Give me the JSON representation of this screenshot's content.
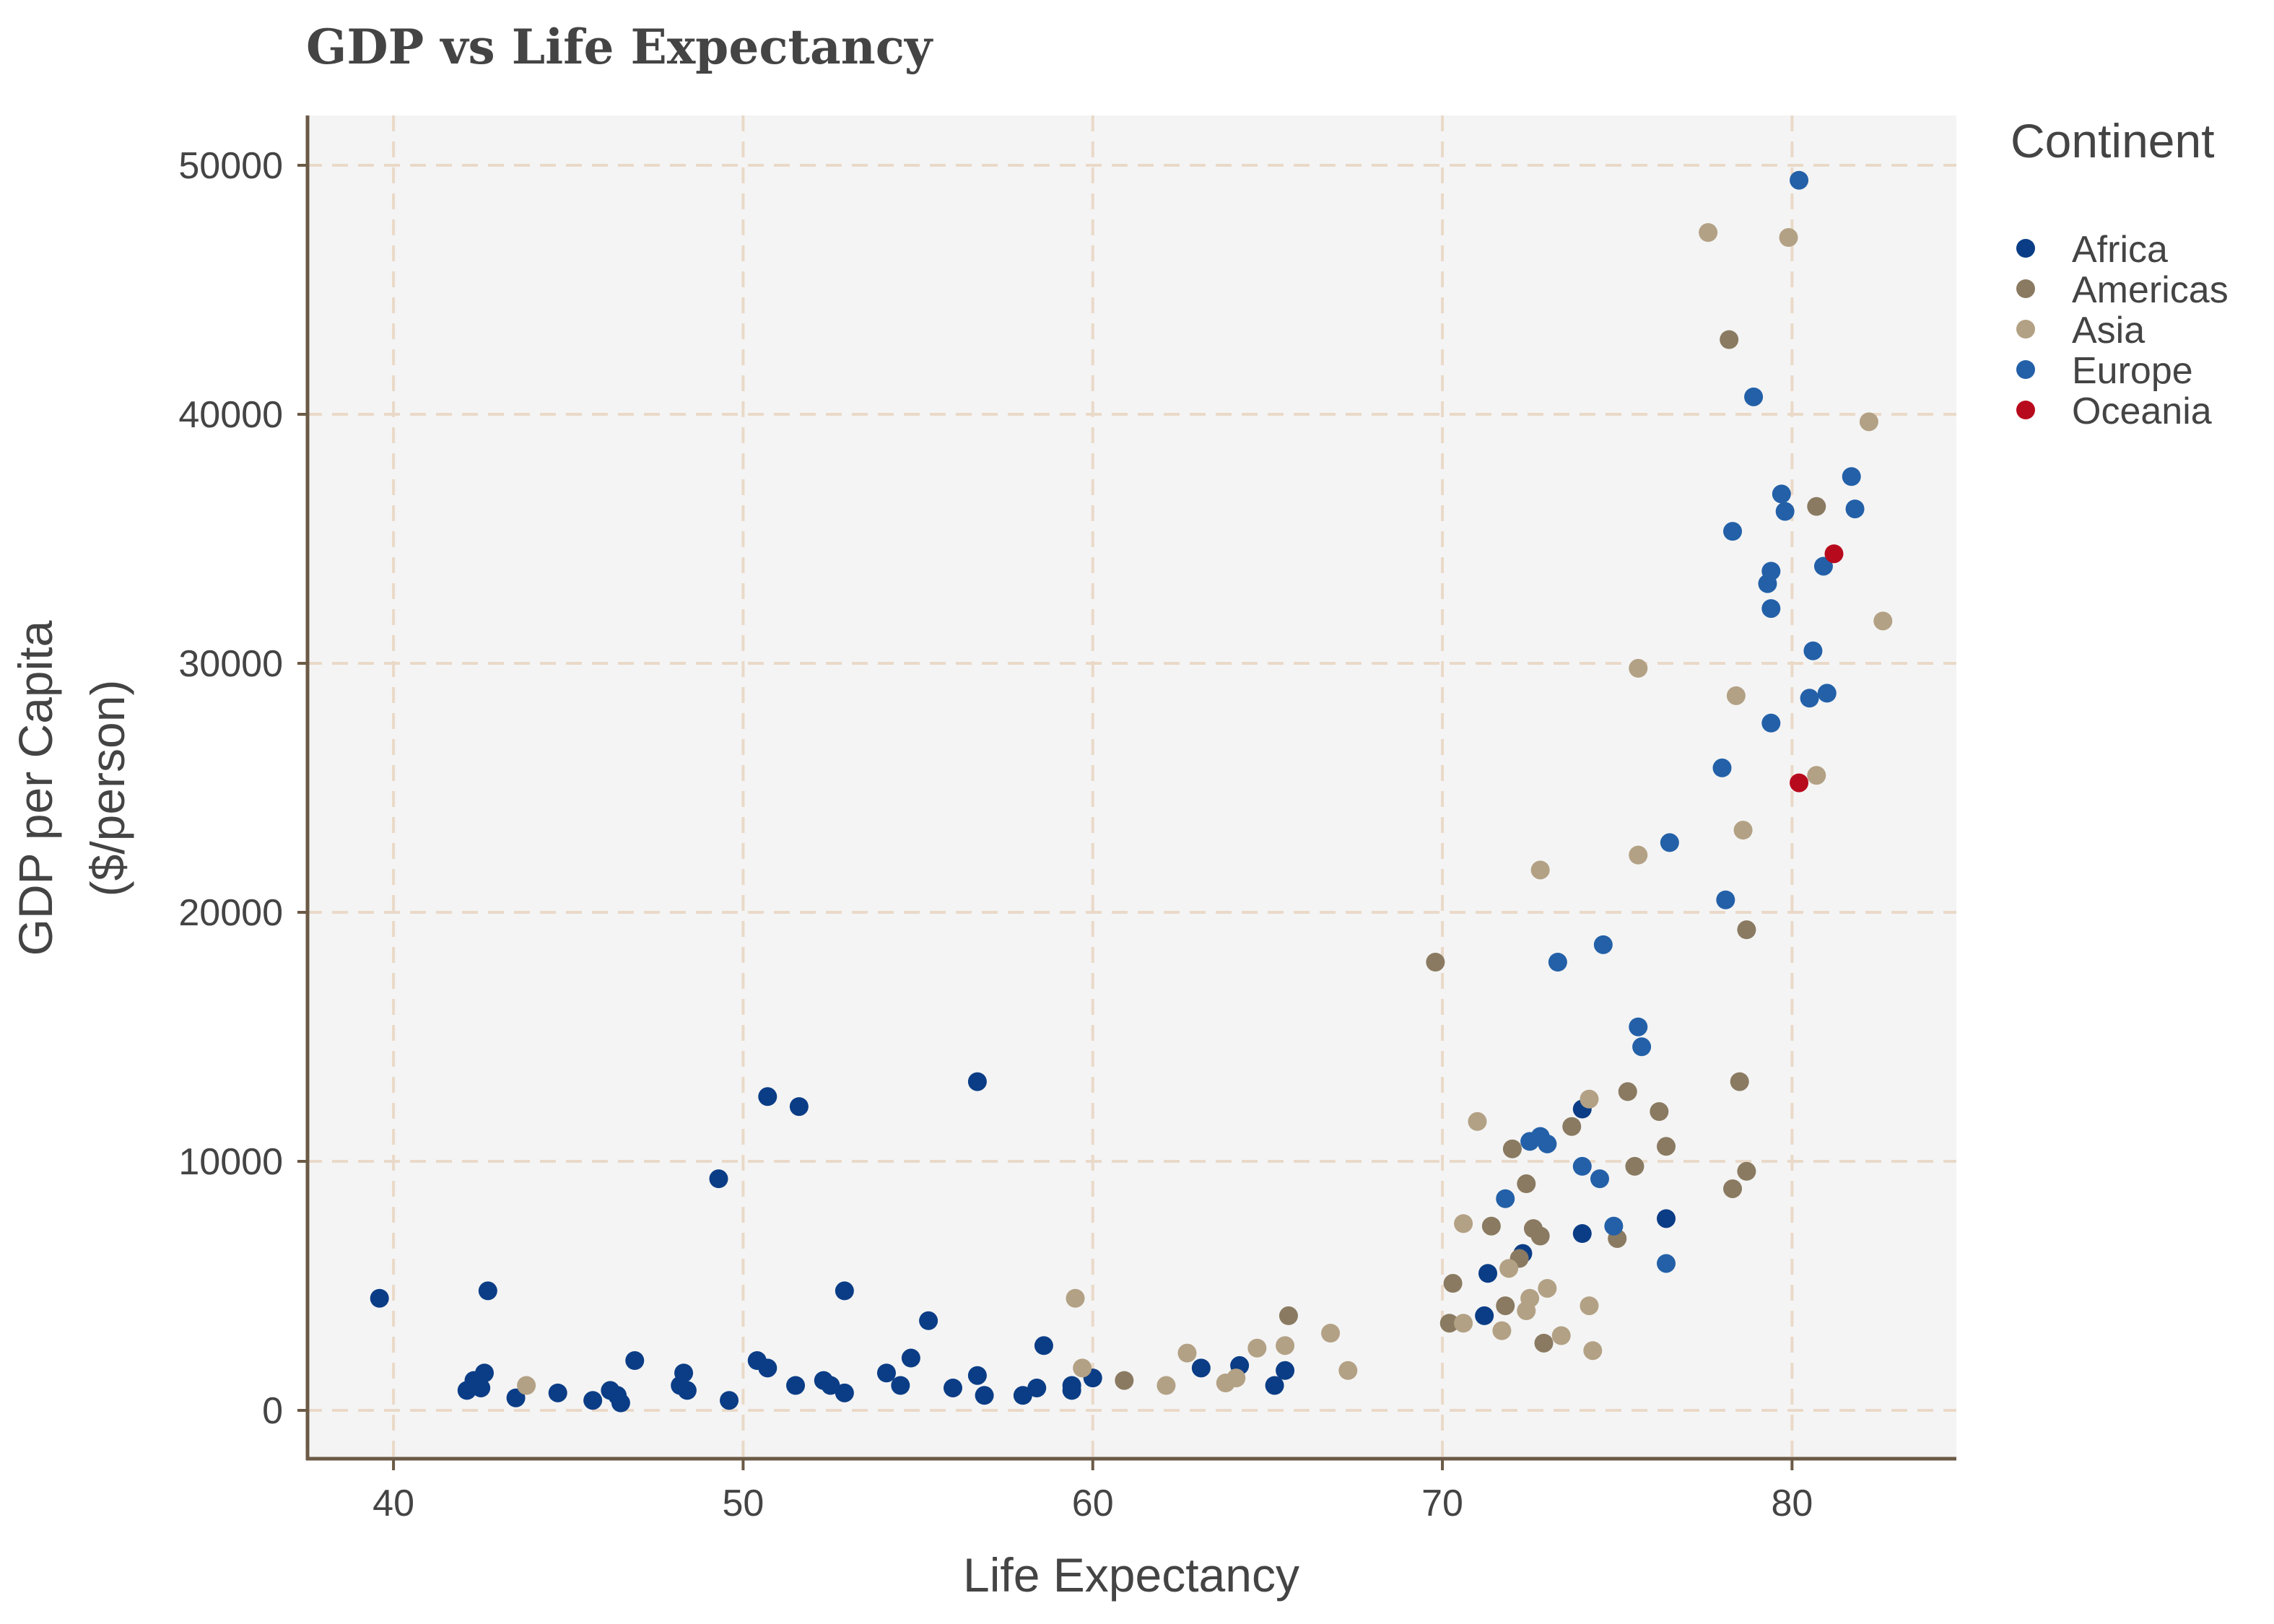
{
  "chart_data": {
    "type": "scatter",
    "title": "GDP vs Life Expectancy",
    "xlabel": "Life Expectancy",
    "ylabel": "GDP per Capita",
    "ylabel_line2": "($/person)",
    "xlim": [
      37.5,
      84.7
    ],
    "ylim": [
      -2000,
      52000
    ],
    "xticks": [
      40,
      50,
      60,
      70,
      80
    ],
    "yticks": [
      0,
      10000,
      20000,
      30000,
      40000,
      50000
    ],
    "grid": true,
    "legend_title": "Continent",
    "legend_position": "right",
    "series": [
      {
        "name": "Africa",
        "color": "#0b3d86",
        "points": [
          [
            39.6,
            4500
          ],
          [
            42.1,
            800
          ],
          [
            42.3,
            1200
          ],
          [
            42.5,
            900
          ],
          [
            42.6,
            1500
          ],
          [
            42.7,
            4800
          ],
          [
            43.5,
            500
          ],
          [
            44.7,
            700
          ],
          [
            45.7,
            400
          ],
          [
            46.2,
            800
          ],
          [
            46.4,
            600
          ],
          [
            46.5,
            300
          ],
          [
            46.9,
            2000
          ],
          [
            48.2,
            1000
          ],
          [
            48.3,
            1500
          ],
          [
            48.4,
            800
          ],
          [
            49.3,
            9300
          ],
          [
            49.6,
            400
          ],
          [
            50.4,
            2000
          ],
          [
            50.7,
            1700
          ],
          [
            50.7,
            12600
          ],
          [
            51.5,
            1000
          ],
          [
            51.6,
            12200
          ],
          [
            52.3,
            1200
          ],
          [
            52.5,
            1000
          ],
          [
            52.9,
            4800
          ],
          [
            52.9,
            700
          ],
          [
            54.1,
            1500
          ],
          [
            54.5,
            1000
          ],
          [
            54.8,
            2100
          ],
          [
            55.3,
            3600
          ],
          [
            56.0,
            900
          ],
          [
            56.7,
            1400
          ],
          [
            56.7,
            13200
          ],
          [
            56.9,
            600
          ],
          [
            58.0,
            600
          ],
          [
            58.4,
            900
          ],
          [
            58.6,
            2600
          ],
          [
            59.4,
            1000
          ],
          [
            59.4,
            800
          ],
          [
            60.0,
            1300
          ],
          [
            63.1,
            1700
          ],
          [
            64.2,
            1800
          ],
          [
            65.2,
            1000
          ],
          [
            65.5,
            1600
          ],
          [
            71.2,
            3800
          ],
          [
            71.3,
            5500
          ],
          [
            72.3,
            6300
          ],
          [
            74.0,
            12100
          ],
          [
            74.0,
            7100
          ],
          [
            76.4,
            7700
          ]
        ]
      },
      {
        "name": "Americas",
        "color": "#8a7a61",
        "points": [
          [
            60.9,
            1200
          ],
          [
            65.6,
            3800
          ],
          [
            69.8,
            18000
          ],
          [
            70.2,
            3500
          ],
          [
            70.3,
            5100
          ],
          [
            71.4,
            7400
          ],
          [
            71.8,
            4200
          ],
          [
            72.0,
            10500
          ],
          [
            72.2,
            6100
          ],
          [
            72.4,
            9100
          ],
          [
            72.6,
            7300
          ],
          [
            72.8,
            7000
          ],
          [
            72.9,
            2700
          ],
          [
            73.7,
            11400
          ],
          [
            75.0,
            6900
          ],
          [
            75.3,
            12800
          ],
          [
            75.5,
            9800
          ],
          [
            76.2,
            12000
          ],
          [
            76.4,
            10600
          ],
          [
            78.2,
            43000
          ],
          [
            78.3,
            8900
          ],
          [
            78.5,
            13200
          ],
          [
            78.7,
            9600
          ],
          [
            78.7,
            19300
          ],
          [
            80.7,
            36300
          ]
        ]
      },
      {
        "name": "Asia",
        "color": "#b3a185",
        "points": [
          [
            43.8,
            1000
          ],
          [
            59.5,
            4500
          ],
          [
            59.7,
            1700
          ],
          [
            62.1,
            1000
          ],
          [
            62.7,
            2300
          ],
          [
            63.8,
            1100
          ],
          [
            64.1,
            1300
          ],
          [
            64.7,
            2500
          ],
          [
            65.5,
            2600
          ],
          [
            66.8,
            3100
          ],
          [
            67.3,
            1600
          ],
          [
            70.6,
            3500
          ],
          [
            70.6,
            7500
          ],
          [
            71.0,
            11600
          ],
          [
            71.7,
            3200
          ],
          [
            71.9,
            5700
          ],
          [
            72.4,
            4000
          ],
          [
            72.5,
            4500
          ],
          [
            72.8,
            21700
          ],
          [
            73.0,
            4900
          ],
          [
            73.4,
            3000
          ],
          [
            74.2,
            4200
          ],
          [
            74.2,
            12500
          ],
          [
            74.3,
            2400
          ],
          [
            75.6,
            29800
          ],
          [
            75.6,
            22300
          ],
          [
            77.6,
            47300
          ],
          [
            78.4,
            28700
          ],
          [
            78.6,
            23300
          ],
          [
            79.9,
            47100
          ],
          [
            80.7,
            25500
          ],
          [
            82.2,
            39700
          ],
          [
            82.6,
            31700
          ]
        ]
      },
      {
        "name": "Europe",
        "color": "#2360a8",
        "points": [
          [
            71.8,
            8500
          ],
          [
            72.5,
            10800
          ],
          [
            72.8,
            11000
          ],
          [
            73.0,
            10700
          ],
          [
            73.3,
            18000
          ],
          [
            74.0,
            9800
          ],
          [
            74.5,
            9300
          ],
          [
            74.6,
            18700
          ],
          [
            74.9,
            7400
          ],
          [
            75.6,
            15400
          ],
          [
            75.7,
            14600
          ],
          [
            76.4,
            5900
          ],
          [
            76.5,
            22800
          ],
          [
            78.0,
            25800
          ],
          [
            78.1,
            20500
          ],
          [
            78.3,
            35300
          ],
          [
            78.9,
            40700
          ],
          [
            79.3,
            33200
          ],
          [
            79.4,
            32200
          ],
          [
            79.4,
            33700
          ],
          [
            79.4,
            27600
          ],
          [
            79.7,
            36800
          ],
          [
            79.8,
            36100
          ],
          [
            80.2,
            49400
          ],
          [
            80.5,
            28600
          ],
          [
            80.6,
            30500
          ],
          [
            80.9,
            33900
          ],
          [
            81.0,
            28800
          ],
          [
            81.7,
            37500
          ],
          [
            81.8,
            36200
          ]
        ]
      },
      {
        "name": "Oceania",
        "color": "#b80a1d",
        "points": [
          [
            80.2,
            25200
          ],
          [
            81.2,
            34400
          ]
        ]
      }
    ]
  }
}
